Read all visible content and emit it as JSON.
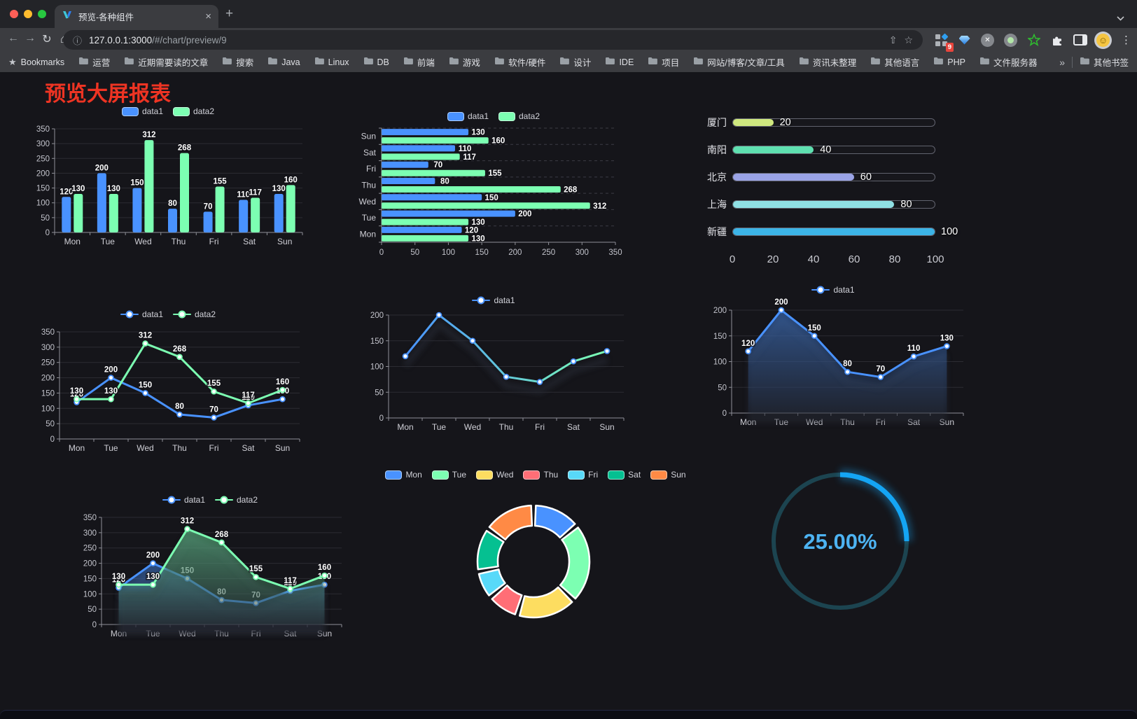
{
  "browser": {
    "tab": {
      "title": "预览-各种组件"
    },
    "url": {
      "host": "127.0.0.1:3000",
      "path": "/#/chart/preview/9"
    },
    "extensions_badge": "9",
    "bookmarks": {
      "root_label": "Bookmarks",
      "folders": [
        "运营",
        "近期需要读的文章",
        "搜索",
        "Java",
        "Linux",
        "DB",
        "前端",
        "游戏",
        "软件/硬件",
        "设计",
        "IDE",
        "项目",
        "网站/博客/文章/工具",
        "资讯未整理",
        "其他语言",
        "PHP",
        "文件服务器"
      ],
      "overflow_chevron": "»",
      "other_label": "其他书签"
    }
  },
  "icons": {
    "close": "×",
    "new_tab": "+",
    "back": "←",
    "forward": "→",
    "reload": "↻",
    "home": "⌂",
    "info": "ⓘ",
    "share": "⇧",
    "star": "☆",
    "bookmarks_star": "★",
    "kebab": "⋮",
    "smile": "☺"
  },
  "page": {
    "title": "预览大屏报表",
    "title_color": "#ee3423",
    "background": "#15151a"
  },
  "chart_data": [
    {
      "id": "grouped-bar-chart",
      "type": "bar",
      "legend": [
        "data1",
        "data2"
      ],
      "categories": [
        "Mon",
        "Tue",
        "Wed",
        "Thu",
        "Fri",
        "Sat",
        "Sun"
      ],
      "series": [
        {
          "name": "data1",
          "color": "#4992ff",
          "values": [
            120,
            200,
            150,
            80,
            70,
            110,
            130
          ]
        },
        {
          "name": "data2",
          "color": "#7cffb2",
          "values": [
            130,
            130,
            312,
            268,
            155,
            117,
            160
          ]
        }
      ],
      "ylim": [
        0,
        350
      ],
      "yticks": [
        0,
        50,
        100,
        150,
        200,
        250,
        300,
        350
      ],
      "value_labels": true
    },
    {
      "id": "grouped-horizontal-bar-chart",
      "type": "hbar",
      "legend": [
        "data1",
        "data2"
      ],
      "categories": [
        "Mon",
        "Tue",
        "Wed",
        "Thu",
        "Fri",
        "Sat",
        "Sun"
      ],
      "row_order_top_to_bottom": [
        "Sun",
        "Sat",
        "Fri",
        "Thu",
        "Wed",
        "Tue",
        "Mon"
      ],
      "series": [
        {
          "name": "data1",
          "color": "#4992ff",
          "values": [
            120,
            200,
            150,
            80,
            70,
            110,
            130
          ]
        },
        {
          "name": "data2",
          "color": "#7cffb2",
          "values": [
            130,
            130,
            312,
            268,
            155,
            117,
            160
          ]
        }
      ],
      "xlim": [
        0,
        350
      ],
      "xticks": [
        0,
        50,
        100,
        150,
        200,
        250,
        300,
        350
      ],
      "value_labels": true
    },
    {
      "id": "city-progress-bars",
      "type": "progress",
      "max": 100,
      "axis_ticks": [
        0,
        20,
        40,
        60,
        80,
        100
      ],
      "items": [
        {
          "label": "厦门",
          "value": 20,
          "color": "#cfe87f"
        },
        {
          "label": "南阳",
          "value": 40,
          "color": "#5fe0b0"
        },
        {
          "label": "北京",
          "value": 60,
          "color": "#9aa3e6"
        },
        {
          "label": "上海",
          "value": 80,
          "color": "#8fe0e4"
        },
        {
          "label": "新疆",
          "value": 100,
          "color": "#3cb4e7"
        }
      ]
    },
    {
      "id": "two-series-line-chart",
      "type": "line",
      "legend": [
        "data1",
        "data2"
      ],
      "categories": [
        "Mon",
        "Tue",
        "Wed",
        "Thu",
        "Fri",
        "Sat",
        "Sun"
      ],
      "series": [
        {
          "name": "data1",
          "color": "#4992ff",
          "values": [
            120,
            200,
            150,
            80,
            70,
            110,
            130
          ]
        },
        {
          "name": "data2",
          "color": "#7cffb2",
          "values": [
            130,
            130,
            312,
            268,
            155,
            117,
            160
          ]
        }
      ],
      "ylim": [
        0,
        350
      ],
      "yticks": [
        0,
        50,
        100,
        150,
        200,
        250,
        300,
        350
      ],
      "value_labels": true,
      "markers": true
    },
    {
      "id": "gradient-line-chart",
      "type": "line",
      "legend": [
        "data1"
      ],
      "categories": [
        "Mon",
        "Tue",
        "Wed",
        "Thu",
        "Fri",
        "Sat",
        "Sun"
      ],
      "series": [
        {
          "name": "data1",
          "color": "#4992ff",
          "gradient": [
            "#4992ff",
            "#7cffb2"
          ],
          "values": [
            120,
            200,
            150,
            80,
            70,
            110,
            130
          ]
        }
      ],
      "ylim": [
        0,
        200
      ],
      "yticks": [
        0,
        50,
        100,
        150,
        200
      ],
      "value_labels": false,
      "markers": true,
      "shadow": true
    },
    {
      "id": "area-line-chart",
      "type": "line",
      "legend": [
        "data1"
      ],
      "categories": [
        "Mon",
        "Tue",
        "Wed",
        "Thu",
        "Fri",
        "Sat",
        "Sun"
      ],
      "series": [
        {
          "name": "data1",
          "color": "#4992ff",
          "area": true,
          "values": [
            120,
            200,
            150,
            80,
            70,
            110,
            130
          ]
        }
      ],
      "ylim": [
        0,
        200
      ],
      "yticks": [
        0,
        50,
        100,
        150,
        200
      ],
      "value_labels": true,
      "markers": true,
      "shadow": true
    },
    {
      "id": "two-series-area-chart",
      "type": "line",
      "legend": [
        "data1",
        "data2"
      ],
      "categories": [
        "Mon",
        "Tue",
        "Wed",
        "Thu",
        "Fri",
        "Sat",
        "Sun"
      ],
      "series": [
        {
          "name": "data1",
          "color": "#4992ff",
          "area": true,
          "values": [
            120,
            200,
            150,
            80,
            70,
            110,
            130
          ]
        },
        {
          "name": "data2",
          "color": "#7cffb2",
          "area": true,
          "values": [
            130,
            130,
            312,
            268,
            155,
            117,
            160
          ]
        }
      ],
      "ylim": [
        0,
        350
      ],
      "yticks": [
        0,
        50,
        100,
        150,
        200,
        250,
        300,
        350
      ],
      "value_labels": true,
      "markers": true,
      "shadow": true
    },
    {
      "id": "weekday-donut-chart",
      "type": "donut",
      "legend": [
        "Mon",
        "Tue",
        "Wed",
        "Thu",
        "Fri",
        "Sat",
        "Sun"
      ],
      "slices": [
        {
          "label": "Mon",
          "value": 120,
          "color": "#4992ff"
        },
        {
          "label": "Tue",
          "value": 200,
          "color": "#7cffb2"
        },
        {
          "label": "Wed",
          "value": 150,
          "color": "#fddd60"
        },
        {
          "label": "Thu",
          "value": 80,
          "color": "#ff6e76"
        },
        {
          "label": "Fri",
          "value": 70,
          "color": "#58d9f9"
        },
        {
          "label": "Sat",
          "value": 110,
          "color": "#05c091"
        },
        {
          "label": "Sun",
          "value": 130,
          "color": "#ff8a45"
        }
      ]
    },
    {
      "id": "percentage-gauge",
      "type": "gauge",
      "value": 25,
      "display": "25.00%",
      "arc_color": "#14a5f4",
      "track_color": "#1c4450",
      "text_color": "#4db3f2"
    }
  ]
}
